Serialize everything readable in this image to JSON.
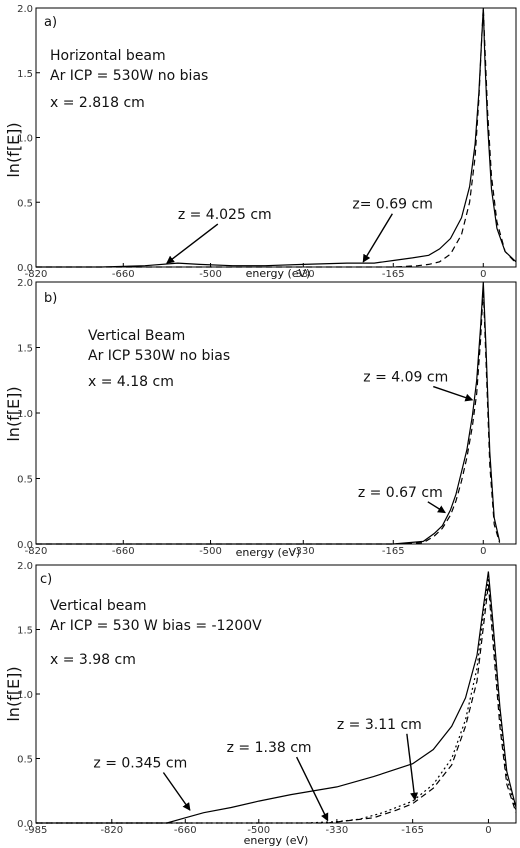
{
  "chart_data": [
    {
      "type": "line",
      "panel_label": "a)",
      "xlabel": "energy (eV)",
      "ylabel": "ln(f[E])",
      "xticks": [
        -820,
        -660,
        -500,
        -330,
        -165,
        0
      ],
      "xlim": [
        -820,
        60
      ],
      "yticks": [
        "0.0",
        "0.5",
        "1.0",
        "1.5",
        "2.0"
      ],
      "ylim": [
        0,
        2
      ],
      "grid": false,
      "texts": [
        "Horizontal beam",
        "Ar ICP = 530W    no bias",
        "x = 2.818 cm"
      ],
      "series": [
        {
          "name": "z= 0.69 cm",
          "style": "solid",
          "x": [
            -820,
            -700,
            -620,
            -560,
            -520,
            -460,
            -400,
            -330,
            -250,
            -200,
            -165,
            -130,
            -100,
            -80,
            -60,
            -40,
            -25,
            -15,
            -8,
            -3,
            0,
            3,
            8,
            15,
            25,
            40,
            60
          ],
          "y": [
            0.0,
            0.0,
            0.01,
            0.03,
            0.02,
            0.01,
            0.01,
            0.02,
            0.03,
            0.03,
            0.05,
            0.07,
            0.09,
            0.14,
            0.22,
            0.38,
            0.62,
            0.95,
            1.35,
            1.75,
            2.0,
            1.6,
            1.1,
            0.6,
            0.3,
            0.12,
            0.04
          ]
        },
        {
          "name": "z = 4.025 cm",
          "style": "dashed",
          "x": [
            -820,
            -600,
            -400,
            -200,
            -165,
            -120,
            -100,
            -80,
            -60,
            -40,
            -25,
            -15,
            -8,
            -3,
            0,
            3,
            8,
            15,
            25,
            40,
            60
          ],
          "y": [
            0.0,
            0.0,
            0.0,
            0.0,
            0.0,
            0.01,
            0.02,
            0.04,
            0.1,
            0.25,
            0.5,
            0.85,
            1.3,
            1.75,
            2.0,
            1.7,
            1.2,
            0.7,
            0.35,
            0.12,
            0.03
          ]
        }
      ],
      "annotations": [
        {
          "text": "z = 4.025 cm",
          "x": -560,
          "y": 0.37,
          "arrow_to": [
            -580,
            0.03
          ]
        },
        {
          "text": "z= 0.69 cm",
          "x": -240,
          "y": 0.45,
          "arrow_to": [
            -220,
            0.04
          ]
        }
      ]
    },
    {
      "type": "line",
      "panel_label": "b)",
      "xlabel": "energy (eV)",
      "ylabel": "ln(f[E])",
      "xticks": [
        -820,
        -660,
        -500,
        -330,
        -165,
        0
      ],
      "xlim": [
        -820,
        60
      ],
      "yticks": [
        "0.0",
        "0.5",
        "1.0",
        "1.5",
        "2.0"
      ],
      "ylim": [
        0,
        2
      ],
      "grid": false,
      "texts": [
        "Vertical Beam",
        "Ar ICP 530W   no bias",
        "x = 4.18 cm"
      ],
      "series": [
        {
          "name": "z = 4.09 cm",
          "style": "solid",
          "x": [
            -820,
            -500,
            -165,
            -110,
            -90,
            -75,
            -60,
            -50,
            -40,
            -30,
            -20,
            -12,
            -5,
            0,
            5,
            12,
            20,
            30
          ],
          "y": [
            0.0,
            0.0,
            0.0,
            0.02,
            0.08,
            0.14,
            0.26,
            0.38,
            0.55,
            0.72,
            0.98,
            1.25,
            1.65,
            2.0,
            1.5,
            0.7,
            0.2,
            0.02
          ]
        },
        {
          "name": "z = 0.67 cm",
          "style": "dashed",
          "x": [
            -820,
            -500,
            -165,
            -110,
            -90,
            -75,
            -60,
            -50,
            -40,
            -30,
            -20,
            -12,
            -5,
            0,
            5,
            12,
            20,
            30
          ],
          "y": [
            0.0,
            0.0,
            0.0,
            0.01,
            0.06,
            0.12,
            0.22,
            0.33,
            0.48,
            0.66,
            0.9,
            1.15,
            1.55,
            1.95,
            1.4,
            0.6,
            0.15,
            0.01
          ]
        }
      ],
      "annotations": [
        {
          "text": "z = 4.09 cm",
          "x": -220,
          "y": 1.24,
          "arrow_to": [
            -20,
            1.1
          ]
        },
        {
          "text": "z = 0.67 cm",
          "x": -230,
          "y": 0.36,
          "arrow_to": [
            -70,
            0.24
          ]
        }
      ]
    },
    {
      "type": "line",
      "panel_label": "c)",
      "xlabel": "energy (eV)",
      "ylabel": "ln(f[E])",
      "xticks": [
        -985,
        -820,
        -660,
        -500,
        -330,
        -165,
        0
      ],
      "xlim": [
        -985,
        60
      ],
      "yticks": [
        "0.0",
        "0.5",
        "1.0",
        "1.5",
        "2.0"
      ],
      "ylim": [
        0,
        2
      ],
      "grid": false,
      "texts": [
        "Vertical beam",
        "Ar ICP = 530 W   bias = -1200V",
        "x = 3.98 cm"
      ],
      "series": [
        {
          "name": "z = 0.345 cm",
          "style": "solid",
          "x": [
            -985,
            -700,
            -660,
            -620,
            -560,
            -500,
            -430,
            -330,
            -250,
            -165,
            -120,
            -80,
            -50,
            -25,
            -10,
            0,
            10,
            25,
            40,
            60
          ],
          "y": [
            0.0,
            0.0,
            0.04,
            0.08,
            0.12,
            0.17,
            0.22,
            0.28,
            0.36,
            0.46,
            0.57,
            0.75,
            0.97,
            1.3,
            1.7,
            1.95,
            1.55,
            0.9,
            0.4,
            0.12
          ]
        },
        {
          "name": "z = 1.38 cm",
          "style": "dotted",
          "x": [
            -985,
            -400,
            -330,
            -280,
            -230,
            -165,
            -120,
            -80,
            -50,
            -25,
            -10,
            0,
            10,
            25,
            40,
            60
          ],
          "y": [
            0.0,
            0.0,
            0.01,
            0.03,
            0.08,
            0.17,
            0.3,
            0.5,
            0.8,
            1.2,
            1.65,
            1.9,
            1.5,
            0.85,
            0.35,
            0.1
          ]
        },
        {
          "name": "z = 3.11 cm",
          "style": "dashed",
          "x": [
            -985,
            -350,
            -300,
            -250,
            -200,
            -165,
            -120,
            -80,
            -50,
            -25,
            -10,
            0,
            10,
            25,
            40,
            60
          ],
          "y": [
            0.0,
            0.0,
            0.02,
            0.04,
            0.1,
            0.15,
            0.27,
            0.45,
            0.75,
            1.1,
            1.55,
            1.85,
            1.4,
            0.75,
            0.3,
            0.08
          ]
        }
      ],
      "annotations": [
        {
          "text": "z = 0.345 cm",
          "x": -860,
          "y": 0.43,
          "arrow_to": [
            -650,
            0.1
          ]
        },
        {
          "text": "z = 1.38 cm",
          "x": -570,
          "y": 0.55,
          "arrow_to": [
            -350,
            0.02
          ]
        },
        {
          "text": "z = 3.11 cm",
          "x": -330,
          "y": 0.73,
          "arrow_to": [
            -160,
            0.18
          ]
        }
      ]
    }
  ]
}
